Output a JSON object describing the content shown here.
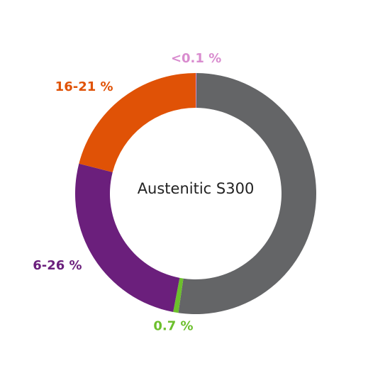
{
  "chart_data": {
    "type": "donut",
    "title": "Austenitic S300",
    "categories": [
      null,
      null,
      null,
      null,
      null
    ],
    "values": [
      0.1,
      52.2,
      0.7,
      26,
      21
    ],
    "value_labels": [
      "<0.1 %",
      null,
      "0.7 %",
      "6-26 %",
      "16-21 %"
    ],
    "colors": [
      "#d98ccf",
      "#646567",
      "#6cbf2c",
      "#6b1f7c",
      "#e05206"
    ]
  }
}
